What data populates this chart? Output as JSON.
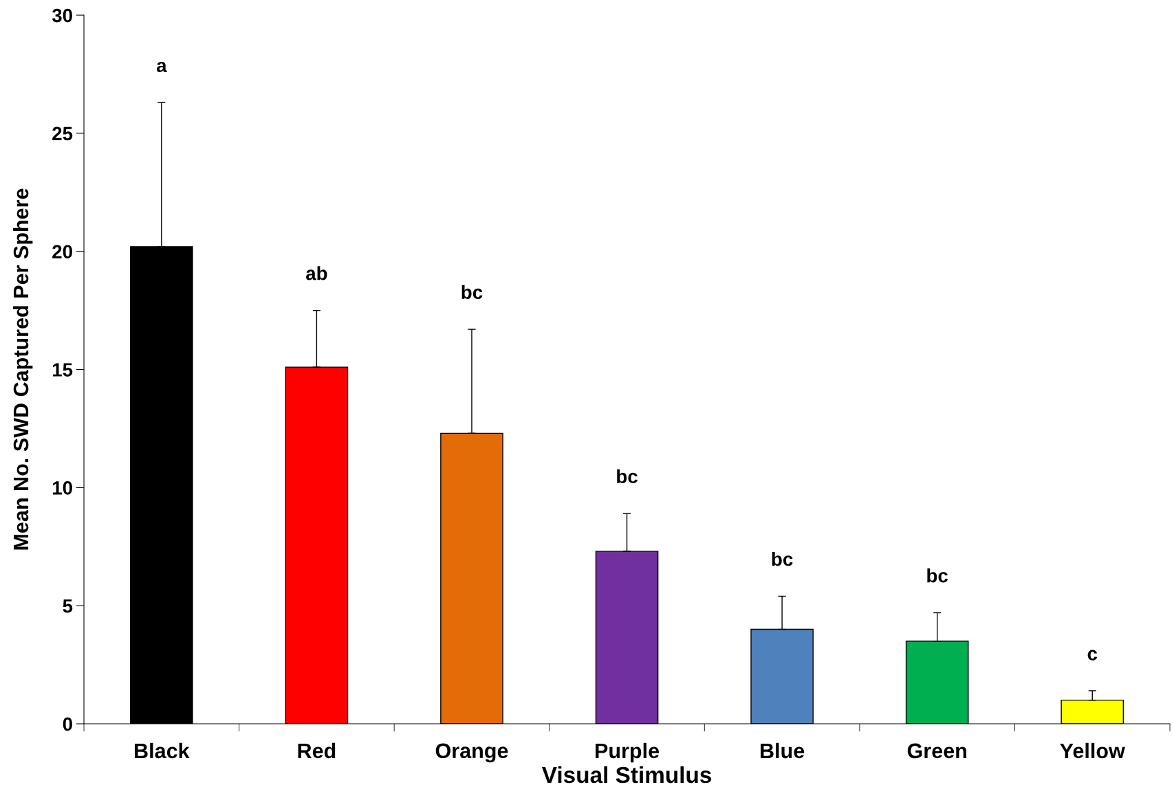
{
  "chart_data": {
    "type": "bar",
    "xlabel": "Visual Stimulus",
    "ylabel": "Mean No. SWD Captured Per Sphere",
    "categories": [
      "Black",
      "Red",
      "Orange",
      "Purple",
      "Blue",
      "Green",
      "Yellow"
    ],
    "values": [
      20.2,
      15.1,
      12.3,
      7.3,
      4.0,
      3.5,
      1.0
    ],
    "colors": [
      "#000000",
      "#ff0000",
      "#e36c09",
      "#7030a0",
      "#4f81bd",
      "#00b050",
      "#ffff00"
    ],
    "errors": [
      [
        20.2,
        26.3
      ],
      [
        15.1,
        17.5
      ],
      [
        12.3,
        16.7
      ],
      [
        7.3,
        8.9
      ],
      [
        4.0,
        5.4
      ],
      [
        3.5,
        4.7
      ],
      [
        1.0,
        1.4
      ]
    ],
    "ylim": [
      0,
      30
    ],
    "yticks": [
      0,
      5,
      10,
      15,
      20,
      25,
      30
    ],
    "grid": false,
    "legend": false,
    "annotations": [
      "a",
      "ab",
      "bc",
      "bc",
      "bc",
      "bc",
      "c"
    ]
  }
}
